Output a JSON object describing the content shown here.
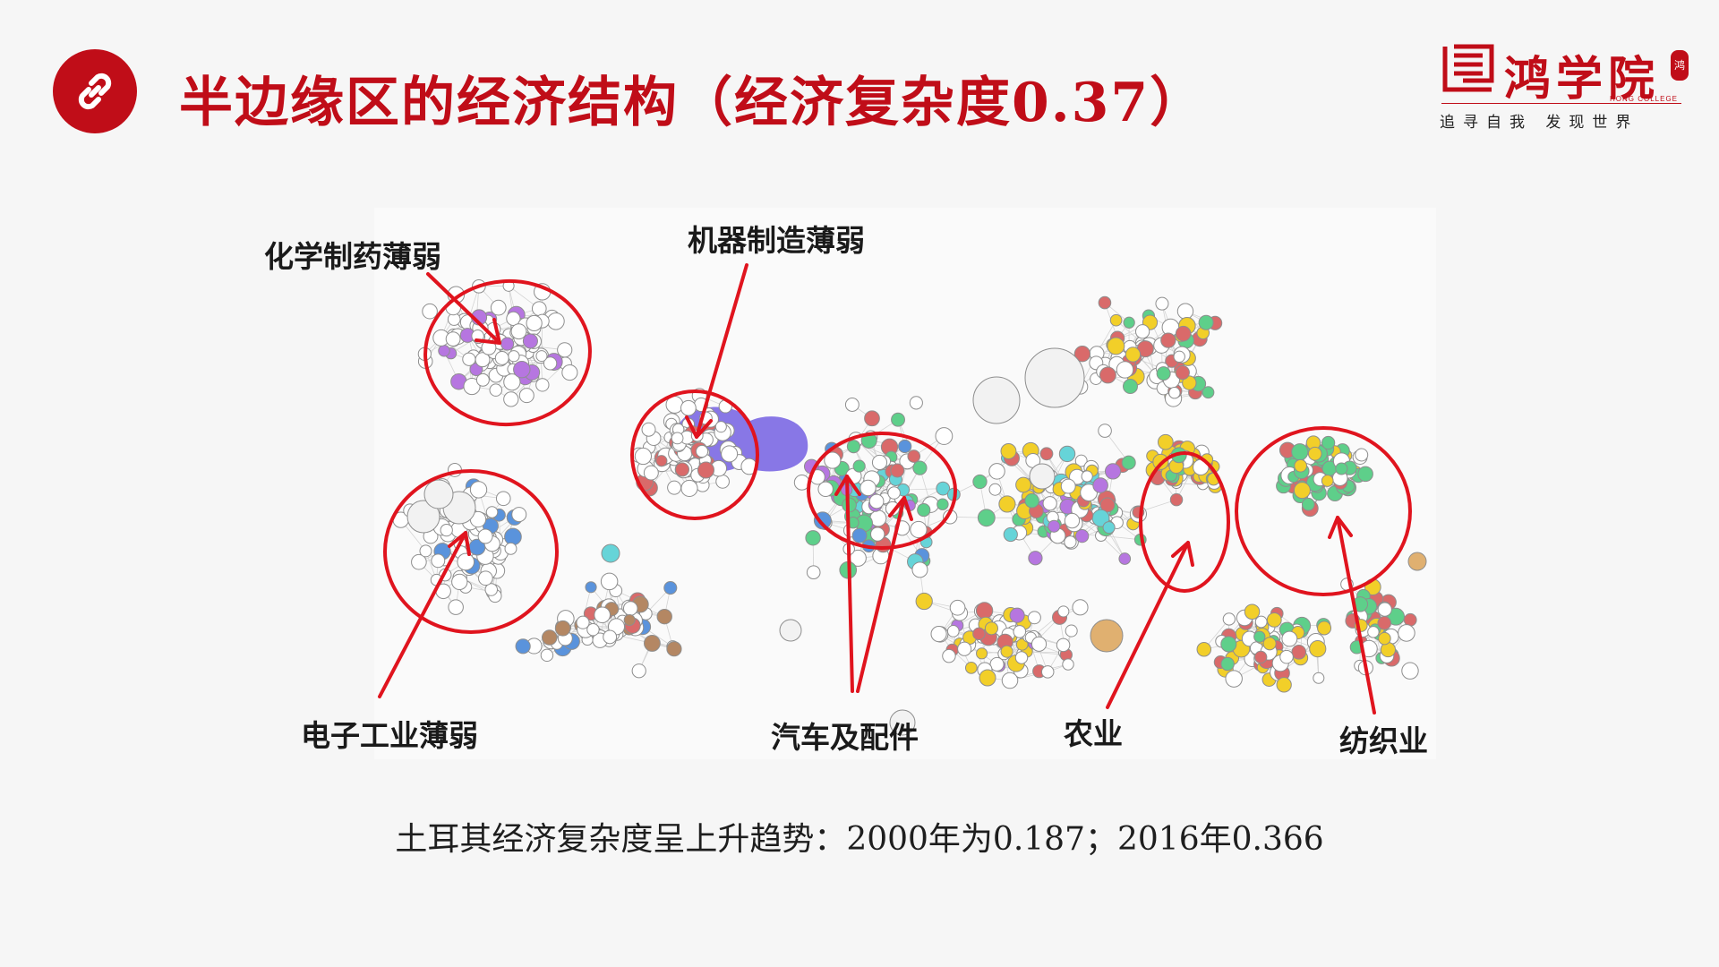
{
  "header": {
    "title": "半边缘区的经济结构（经济复杂度0.37）",
    "title_icon": "link-icon",
    "title_color": "#c00d18"
  },
  "logo": {
    "brand": "鸿学院",
    "english": "HONG COLLEGE",
    "slogan": "追寻自我  发现世界",
    "seal_glyph": "鸿"
  },
  "diagram": {
    "annotations": {
      "chemical": "化学制药薄弱",
      "machinery": "机器制造薄弱",
      "electronics": "电子工业薄弱",
      "automotive": "汽车及配件",
      "agriculture": "农业",
      "textile": "纺织业"
    },
    "highlight_color": "#e0141e",
    "node_colors": {
      "default": "#ffffff",
      "textile": "#5ecf8a",
      "agriculture": "#f2cf29",
      "automotive": "#8877e6",
      "chemical": "#b676e0",
      "minerals": "#d96a6a",
      "electronics": "#5a93dc",
      "cyan": "#66d4d8",
      "brown": "#b48763",
      "tan": "#e0b070"
    }
  },
  "caption": "土耳其经济复杂度呈上升趋势：2000年为0.187；2016年0.366"
}
